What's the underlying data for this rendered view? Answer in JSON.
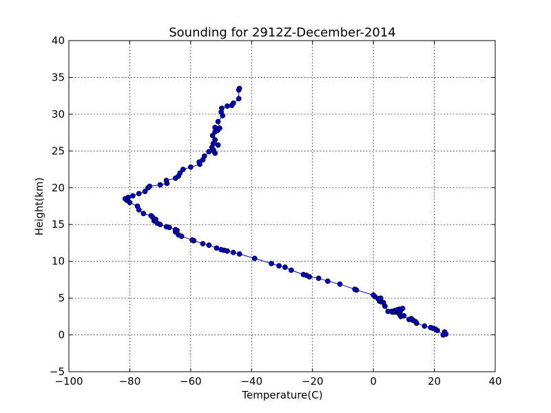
{
  "chart_data": {
    "type": "line",
    "title": "Sounding for 2912Z-December-2014",
    "xlabel": "Temperature(C)",
    "ylabel": "Height(km)",
    "xlim": [
      -100,
      40
    ],
    "ylim": [
      -5,
      40
    ],
    "xticks": [
      "−100",
      "−80",
      "−60",
      "−40",
      "−20",
      "0",
      "20",
      "40"
    ],
    "yticks": [
      "−5",
      "0",
      "5",
      "10",
      "15",
      "20",
      "25",
      "30",
      "35",
      "40"
    ],
    "grid": true,
    "line_color": "#0000cc",
    "marker_color": "#0000cc",
    "series": [
      {
        "x": [
          23.8,
          23.4,
          22.9,
          21.0,
          20.3,
          19.5,
          18.8,
          16.8,
          14.2,
          13.8,
          13.0,
          12.5,
          11.7,
          10.0,
          9.0,
          8.6,
          8.2,
          7.4,
          6.7,
          6.0,
          7.0,
          8.5,
          9.6,
          8.8,
          7.8,
          6.2,
          4.8,
          3.8,
          3.3,
          2.6,
          2.0,
          1.6,
          2.4,
          1.7,
          0.5,
          0.0,
          -5.6,
          -6.1,
          -11.0,
          -15.0,
          -18.0,
          -21.0,
          -22.0,
          -23.0,
          -27.0,
          -29.0,
          -31.0,
          -33.5,
          -39.0,
          -44.0,
          -46.0,
          -48.0,
          -49.0,
          -50.0,
          -51.5,
          -54.0,
          -56.0,
          -59.0,
          -59.5,
          -63.0,
          -64.0,
          -65.0,
          -64.5,
          -65.0,
          -67.0,
          -68.0,
          -70.0,
          -71.0,
          -72.0,
          -71.5,
          -72.5,
          -73.0,
          -75.5,
          -77.0,
          -77.5,
          -80.0,
          -81.0,
          -81.5,
          -80.5,
          -79.0,
          -77.0,
          -75.0,
          -74.0,
          -73.5,
          -70.0,
          -67.8,
          -68.0,
          -65.0,
          -64.0,
          -63.5,
          -62.5,
          -60.0,
          -57.0,
          -57.2,
          -56.0,
          -55.5,
          -54.0,
          -52.0,
          -52.5,
          -53.0,
          -52.6,
          -51.0,
          -52.0,
          -52.8,
          -52.0,
          -51.2,
          -52.0,
          -50.5,
          -51.0,
          -49.5,
          -50.0,
          -49.8,
          -48.0,
          -46.5,
          -46.0,
          -44.2,
          -44.2,
          -44.0
        ],
        "y": [
          0.1,
          0.4,
          0.0,
          0.6,
          0.8,
          0.9,
          1.0,
          1.2,
          1.6,
          1.8,
          2.0,
          2.2,
          2.1,
          2.6,
          2.5,
          2.8,
          3.0,
          3.1,
          3.1,
          3.2,
          3.3,
          3.5,
          3.6,
          3.2,
          3.4,
          3.1,
          3.2,
          3.9,
          4.4,
          4.5,
          4.6,
          4.9,
          5.0,
          4.9,
          5.2,
          5.4,
          6.1,
          6.2,
          6.9,
          7.3,
          7.7,
          7.9,
          8.1,
          8.2,
          8.8,
          9.2,
          9.4,
          9.7,
          10.4,
          11.0,
          11.2,
          11.4,
          11.5,
          11.6,
          11.8,
          12.2,
          12.4,
          12.8,
          12.9,
          13.4,
          13.6,
          14.0,
          14.2,
          14.3,
          14.6,
          14.7,
          15.0,
          15.2,
          15.5,
          15.7,
          16.0,
          16.2,
          16.5,
          17.0,
          17.5,
          18.0,
          18.3,
          18.5,
          18.7,
          18.9,
          19.2,
          19.5,
          20.0,
          20.2,
          20.4,
          20.6,
          21.0,
          21.3,
          21.6,
          22.0,
          22.5,
          22.8,
          23.2,
          23.5,
          23.8,
          24.3,
          24.9,
          24.7,
          25.1,
          25.5,
          26.0,
          25.8,
          26.5,
          27.1,
          27.6,
          27.8,
          28.2,
          28.1,
          29.0,
          29.8,
          30.3,
          30.8,
          31.1,
          31.2,
          31.5,
          32.1,
          33.3,
          33.5
        ]
      }
    ]
  }
}
